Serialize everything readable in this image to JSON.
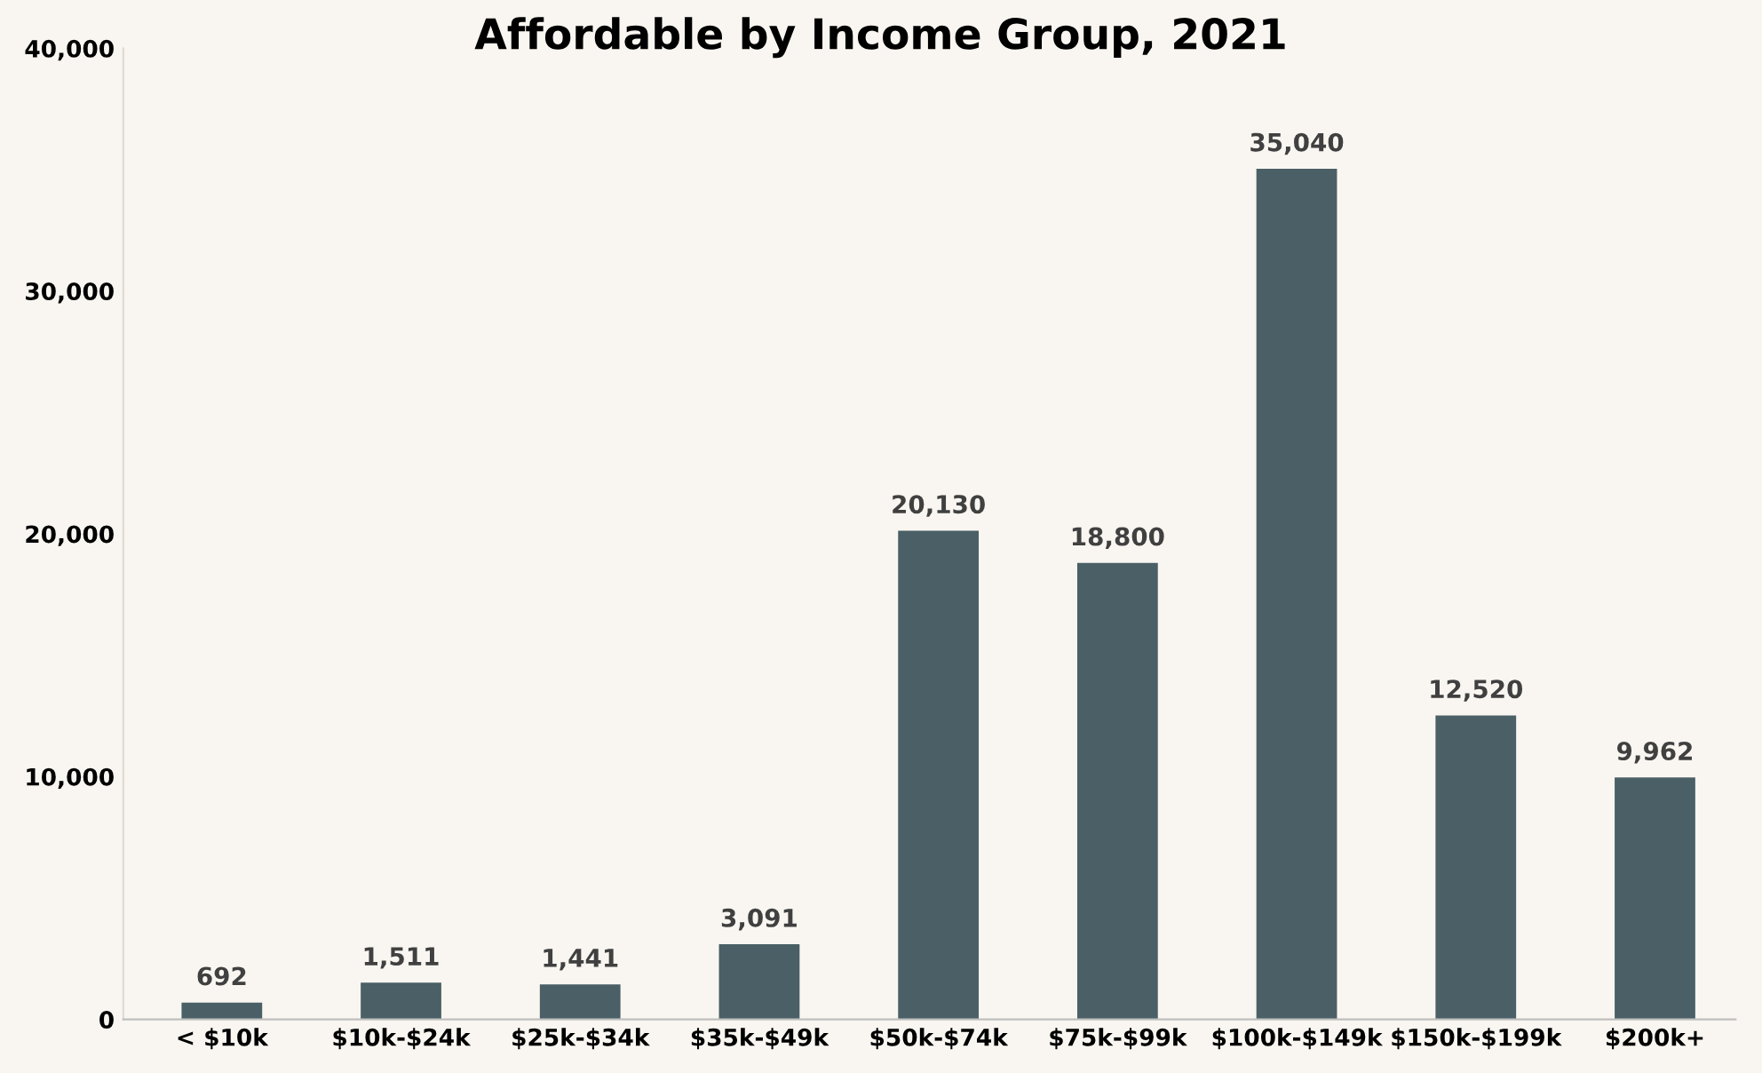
{
  "chart_data": {
    "type": "bar",
    "title": "Affordable by Income Group, 2021",
    "categories": [
      "< $10k",
      "$10k-$24k",
      "$25k-$34k",
      "$35k-$49k",
      "$50k-$74k",
      "$75k-$99k",
      "$100k-$149k",
      "$150k-$199k",
      "$200k+"
    ],
    "values": [
      692,
      1511,
      1441,
      3091,
      20130,
      18800,
      35040,
      12520,
      9962
    ],
    "color": "#4a5f66",
    "ylim": [
      0,
      40000
    ],
    "yticks": [
      0,
      {
        "value": 10000,
        "label": "10,000"
      },
      {
        "value": 20000,
        "label": "20,000"
      },
      {
        "value": 30000,
        "label": "30,000"
      },
      {
        "value": 40000,
        "label": "40,000"
      }
    ],
    "value_labels": [
      "692",
      "1,511",
      "1,441",
      "3,091",
      "20,130",
      "18,800",
      "35,040",
      "12,520",
      "9,962"
    ],
    "grid": false,
    "legend": false
  }
}
